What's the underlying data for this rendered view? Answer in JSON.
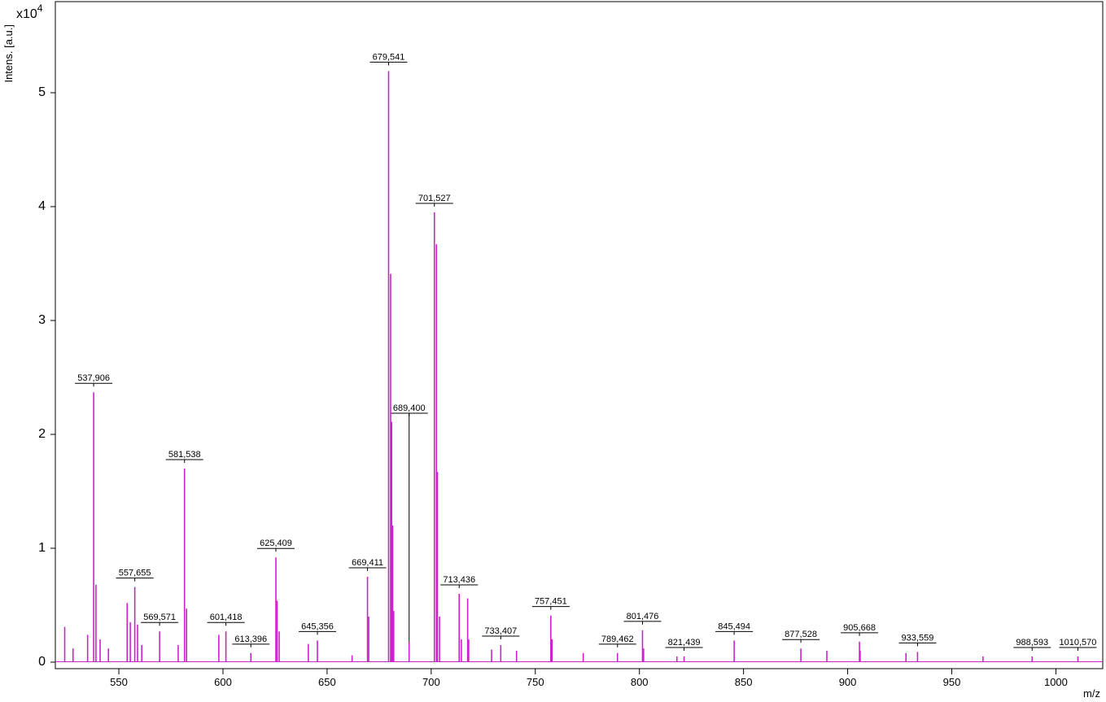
{
  "chart_data": {
    "type": "stick",
    "ylabel": "Intens. [a.u.]",
    "xlabel": "m/z",
    "y_multiplier": {
      "base": "x10",
      "exponent": "4"
    },
    "color": "#cc22cc",
    "annotation_color": "#000000",
    "xlim": [
      519.5,
      1022.5
    ],
    "ylim": [
      -0.057,
      5.8
    ],
    "xticks": [
      550,
      600,
      650,
      700,
      750,
      800,
      850,
      900,
      950,
      1000
    ],
    "yticks": [
      0,
      1,
      2,
      3,
      4,
      5
    ],
    "x": [
      {
        "value": 537.906,
        "label": "537,906"
      },
      {
        "value": 557.655,
        "label": "557,655"
      },
      {
        "value": 569.571,
        "label": "569,571"
      },
      {
        "value": 581.538,
        "label": "581,538"
      },
      {
        "value": 601.418,
        "label": "601,418"
      },
      {
        "value": 613.396,
        "label": "613,396"
      },
      {
        "value": 625.409,
        "label": "625,409"
      },
      {
        "value": 645.356,
        "label": "645,356"
      },
      {
        "value": 669.411,
        "label": "669,411"
      },
      {
        "value": 679.541,
        "label": "679,541"
      },
      {
        "value": 689.4,
        "label": "689,400"
      },
      {
        "value": 701.527,
        "label": "701,527"
      },
      {
        "value": 713.436,
        "label": "713,436"
      },
      {
        "value": 733.407,
        "label": "733,407"
      },
      {
        "value": 757.451,
        "label": "757,451"
      },
      {
        "value": 789.462,
        "label": "789,462"
      },
      {
        "value": 801.476,
        "label": "801,476"
      },
      {
        "value": 821.439,
        "label": "821,439"
      },
      {
        "value": 845.494,
        "label": "845,494"
      },
      {
        "value": 877.528,
        "label": "877,528"
      },
      {
        "value": 905.668,
        "label": "905,668"
      },
      {
        "value": 933.559,
        "label": "933,559"
      },
      {
        "value": 988.593,
        "label": "988,593"
      },
      {
        "value": 1010.57,
        "label": "1010,570"
      },
      524,
      528,
      535,
      539,
      541,
      545,
      554,
      555.5,
      559,
      561,
      578.5,
      582.5,
      598,
      626,
      627,
      641,
      662,
      670,
      680.5,
      681,
      681.5,
      682,
      702.5,
      703,
      704,
      714.5,
      717.5,
      718,
      729,
      741,
      758,
      773,
      802,
      818,
      890,
      906,
      928,
      965
    ],
    "values": [
      2.37,
      0.66,
      0.27,
      1.7,
      0.27,
      0.08,
      0.92,
      0.19,
      0.75,
      5.19,
      0.18,
      3.95,
      0.6,
      0.15,
      0.41,
      0.08,
      0.28,
      0.05,
      0.19,
      0.12,
      0.18,
      0.09,
      0.05,
      0.05,
      0.31,
      0.12,
      0.24,
      0.68,
      0.2,
      0.12,
      0.52,
      0.35,
      0.33,
      0.15,
      0.15,
      0.47,
      0.24,
      0.54,
      0.27,
      0.16,
      0.06,
      0.4,
      3.41,
      2.11,
      1.2,
      0.45,
      3.67,
      1.67,
      0.4,
      0.2,
      0.56,
      0.2,
      0.11,
      0.1,
      0.2,
      0.08,
      0.12,
      0.05,
      0.1,
      0.1,
      0.08,
      0.05
    ]
  }
}
